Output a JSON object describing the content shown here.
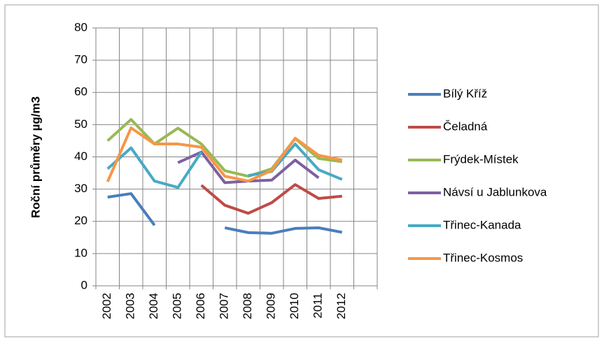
{
  "chart_data": {
    "type": "line",
    "y_label": "Roční průměry µg/m3",
    "categories": [
      "2002",
      "2003",
      "2004",
      "2005",
      "2006",
      "2007",
      "2008",
      "2009",
      "2010",
      "2011",
      "2012",
      null
    ],
    "series": [
      {
        "name": "Bílý Kříž",
        "color": "#4a7ebb",
        "values": [
          27.5,
          28.6,
          18.8,
          null,
          null,
          18,
          16.5,
          16.3,
          17.8,
          18,
          16.6,
          null
        ]
      },
      {
        "name": "Čeladná",
        "color": "#be4b48",
        "values": [
          null,
          null,
          null,
          null,
          31.2,
          25,
          22.5,
          25.8,
          31.4,
          27.1,
          27.8,
          null
        ]
      },
      {
        "name": "Frýdek-Místek",
        "color": "#98b954",
        "values": [
          45,
          51.6,
          44,
          48.9,
          44,
          35.7,
          34,
          36.3,
          45.7,
          39.5,
          38.5,
          null
        ]
      },
      {
        "name": "Návsí u Jablunkova",
        "color": "#7d60a0",
        "values": [
          null,
          null,
          null,
          38.2,
          41.5,
          32,
          32.5,
          32.8,
          39,
          33.5,
          null,
          null
        ]
      },
      {
        "name": "Třinec-Kanada",
        "color": "#46aac5",
        "values": [
          36.3,
          42.8,
          32.5,
          30.5,
          41.5,
          null,
          34.2,
          35.5,
          44,
          36,
          33,
          null
        ]
      },
      {
        "name": "Třinec-Kosmos",
        "color": "#f79646",
        "values": [
          32.3,
          49,
          44,
          44,
          43,
          34,
          32.5,
          35.8,
          45.8,
          40.5,
          39,
          null
        ]
      }
    ],
    "ylim": [
      0,
      80
    ],
    "yticks": [
      0,
      10,
      20,
      30,
      40,
      50,
      60,
      70,
      80
    ],
    "grid": true,
    "legend": "right"
  }
}
